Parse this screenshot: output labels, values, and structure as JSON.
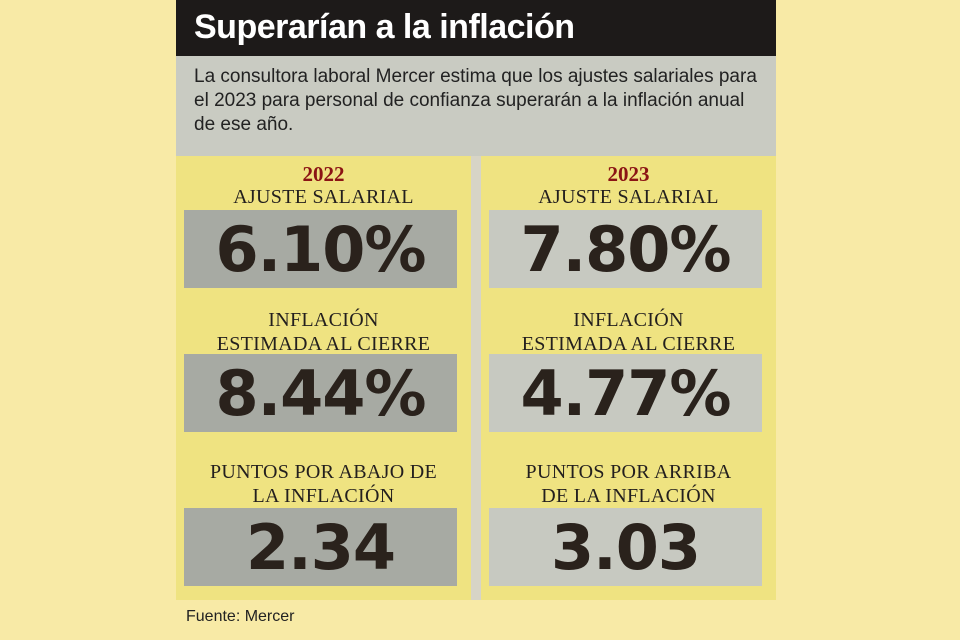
{
  "title": "Superarían a la inflación",
  "intro": "La consultora laboral Mercer estima que los ajustes salariales para el 2023 para personal de confianza superarán a la inflación anual de ese año.",
  "columns": [
    {
      "year": "2022",
      "metrics": [
        {
          "label": "AJUSTE SALARIAL",
          "value": "6.10%"
        },
        {
          "label": "INFLACIÓN ESTIMADA AL CIERRE",
          "value": "8.44%"
        },
        {
          "label": "PUNTOS POR ABAJO DE LA INFLACIÓN",
          "value": "2.34"
        }
      ]
    },
    {
      "year": "2023",
      "metrics": [
        {
          "label": "AJUSTE SALARIAL",
          "value": "7.80%"
        },
        {
          "label": "INFLACIÓN ESTIMADA AL CIERRE",
          "value": "4.77%"
        },
        {
          "label": "PUNTOS POR ARRIBA DE LA INFLACIÓN",
          "value": "3.03"
        }
      ]
    }
  ],
  "source": "Fuente: Mercer",
  "colors": {
    "page_bg": "#f8eaa6",
    "title_bg": "#1d1a19",
    "intro_bg": "#c9cbc2",
    "panel_bg": "#efe381",
    "year_color": "#8b1414",
    "value_box_2022": "#a7aaa3",
    "value_box_2023": "#c7c9c1"
  }
}
